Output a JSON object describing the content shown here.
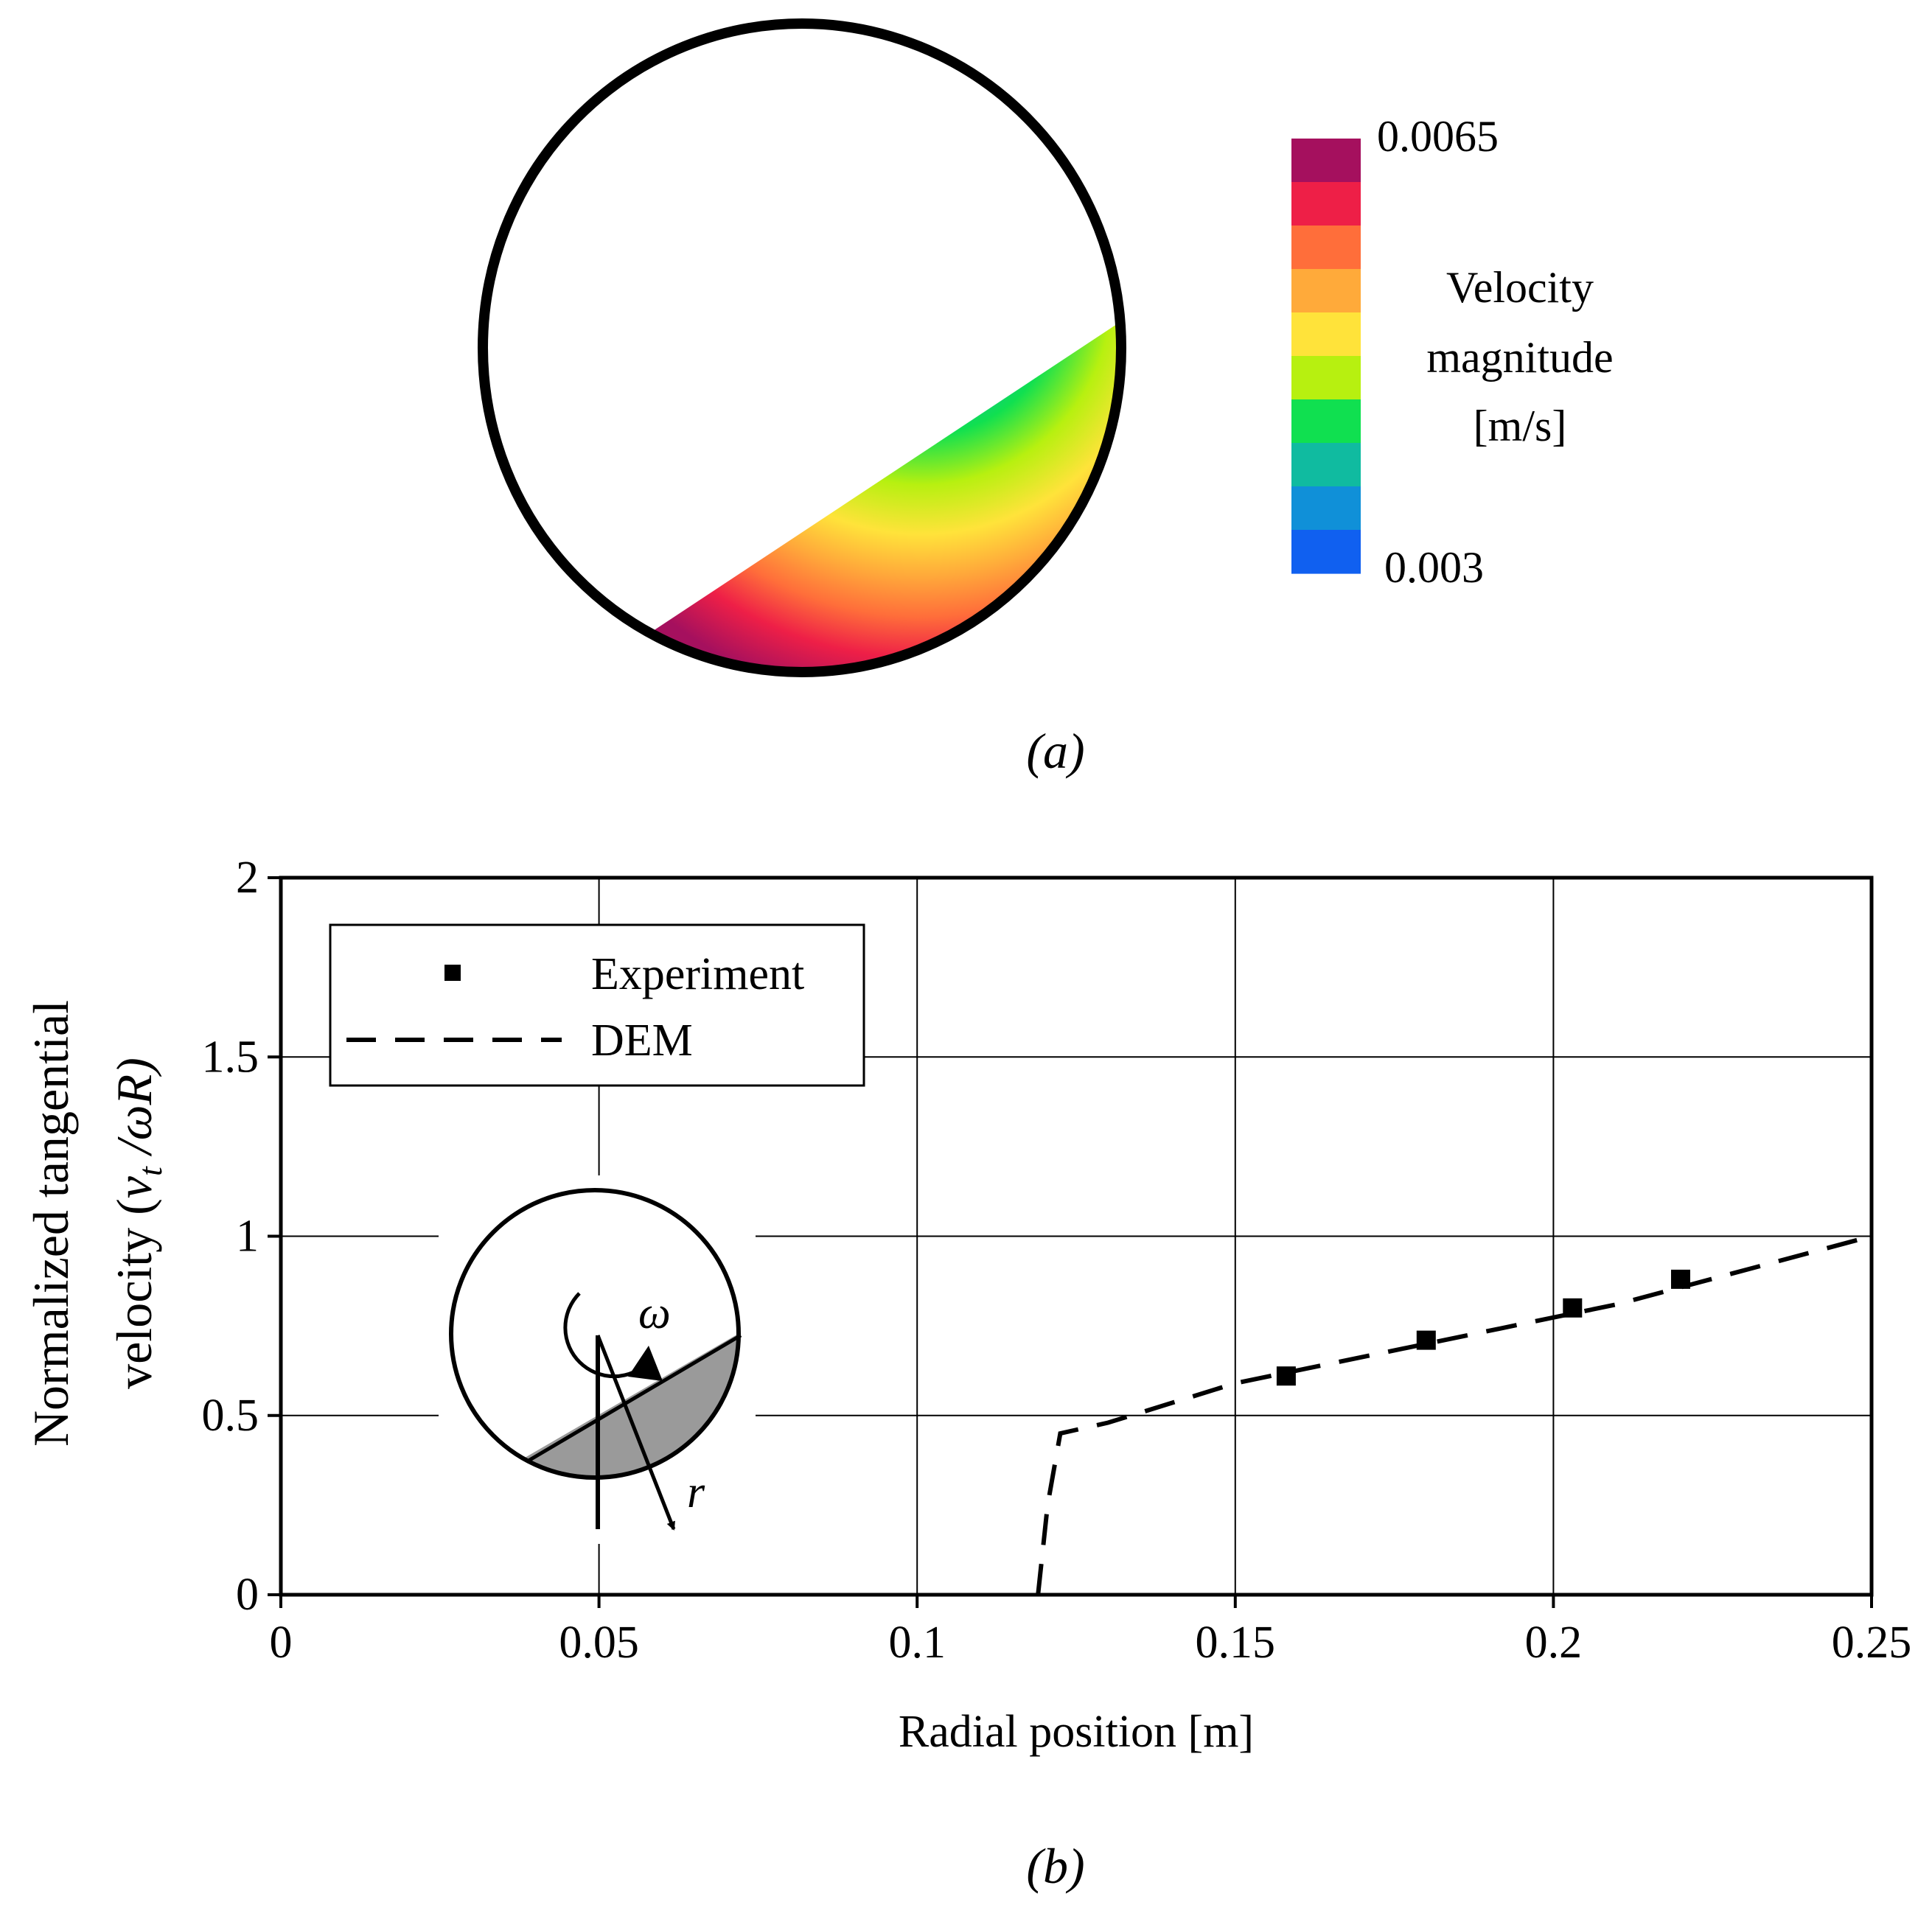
{
  "panel_a": {
    "label": "(a)",
    "colorbar": {
      "max_label": "0.0065",
      "min_label": "0.003",
      "title_lines": [
        "Velocity",
        "magnitude",
        "[m/s]"
      ],
      "colors": [
        "#a5105e",
        "#ee1f47",
        "#ff6e3a",
        "#ffaa3a",
        "#ffe33a",
        "#b7f010",
        "#10e050",
        "#10bba0",
        "#1090d8",
        "#1060f0"
      ]
    }
  },
  "panel_b": {
    "label": "(b)",
    "inset": {
      "omega_label": "ω",
      "r_label": "r",
      "bed_color": "#9a9a9a"
    }
  },
  "chart_data": {
    "type": "line",
    "title": "",
    "xlabel": "Radial position [m]",
    "ylabel_line1": "Normalized tangential",
    "ylabel_line2_prefix": "velocity (",
    "ylabel_v": "v",
    "ylabel_sub": "t",
    "ylabel_rest": " /ωR)",
    "xlim": [
      0,
      0.25
    ],
    "ylim": [
      0,
      2
    ],
    "xticks": [
      0,
      0.05,
      0.1,
      0.15,
      0.2,
      0.25
    ],
    "xtick_labels": [
      "0",
      "0.05",
      "0.1",
      "0.15",
      "0.2",
      "0.25"
    ],
    "yticks": [
      0,
      0.5,
      1,
      1.5,
      2
    ],
    "ytick_labels": [
      "0",
      "0.5",
      "1",
      "1.5",
      "2"
    ],
    "grid": true,
    "legend_position": "top-left",
    "series": [
      {
        "name": "Experiment",
        "style": "square-markers",
        "x": [
          0.158,
          0.18,
          0.203,
          0.22
        ],
        "y": [
          0.61,
          0.71,
          0.8,
          0.88
        ]
      },
      {
        "name": "DEM",
        "style": "dashed-line",
        "x": [
          0.119,
          0.1205,
          0.1225,
          0.13,
          0.15,
          0.18,
          0.21,
          0.25
        ],
        "y": [
          0.0,
          0.25,
          0.45,
          0.48,
          0.59,
          0.7,
          0.81,
          1.0
        ]
      }
    ]
  }
}
